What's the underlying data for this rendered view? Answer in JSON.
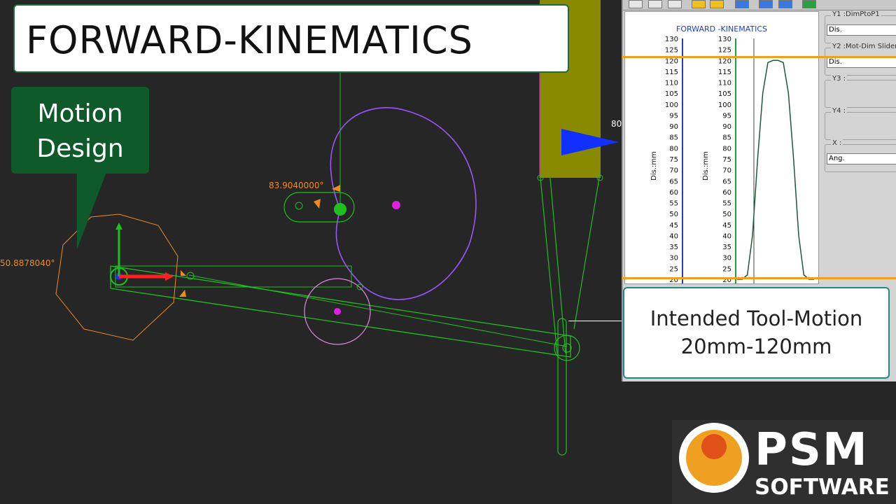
{
  "title": "FORWARD-KINEMATICS",
  "callout": {
    "line1": "Motion",
    "line2": "Design"
  },
  "cad": {
    "angle_label_1": "83.9040000°",
    "angle_label_2": "50.8878040°",
    "edge_label": "80",
    "colors": {
      "link": "#1fbf1f",
      "cam": "#9a55ff",
      "orange": "#f08a1a",
      "slider": "#8a8a00",
      "magenta": "#e020e0"
    }
  },
  "panel": {
    "toolbar_icons": [
      "window-icon",
      "print-icon",
      "series-icon",
      "zoom-in-icon",
      "zoom-out-icon",
      "fit-icon",
      "arrow-left-icon",
      "arrow-right-icon",
      "exit-icon"
    ],
    "graph": {
      "title": "FORWARD -KINEMATICS",
      "axis_label_1": "Dis.:mm",
      "axis_label_2": "Dis.:mm"
    },
    "fields": [
      {
        "legend": "Y1 :DimPtoP1",
        "value": "Dis."
      },
      {
        "legend": "Y2 :Mot-Dim Slider2",
        "value": "Dis."
      },
      {
        "legend": "Y3 :",
        "value": ""
      },
      {
        "legend": "Y4 :",
        "value": ""
      },
      {
        "legend": "X :",
        "value": "Ang."
      }
    ]
  },
  "chart_data": {
    "type": "line",
    "title": "FORWARD -KINEMATICS",
    "ylabel": "Dis.:mm",
    "ylim": [
      20,
      130
    ],
    "yticks": [
      130,
      125,
      120,
      115,
      110,
      105,
      100,
      95,
      90,
      85,
      80,
      75,
      70,
      65,
      60,
      55,
      50,
      45,
      40,
      35,
      30,
      25,
      20
    ],
    "series": [
      {
        "values": [
          20,
          20,
          22,
          40,
          75,
          105,
          119,
          120,
          120,
          119,
          105,
          75,
          40,
          22,
          20,
          20
        ]
      }
    ]
  },
  "intended": {
    "line1": "Intended Tool-Motion",
    "line2": "20mm-120mm"
  },
  "logo": {
    "name": "PSM",
    "sub": "SOFTWARE"
  }
}
